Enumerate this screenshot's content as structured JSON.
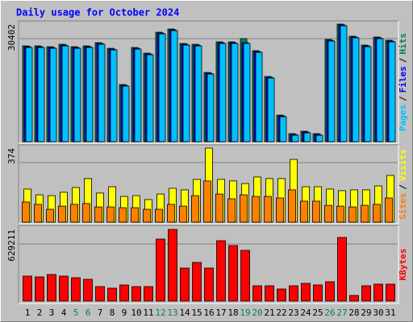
{
  "chart_data": [
    {
      "type": "bar",
      "title": "Daily usage for October 2024",
      "categories": [
        "1",
        "2",
        "3",
        "4",
        "5",
        "6",
        "7",
        "8",
        "9",
        "10",
        "11",
        "12",
        "13",
        "14",
        "15",
        "16",
        "17",
        "18",
        "19",
        "20",
        "21",
        "22",
        "23",
        "24",
        "25",
        "26",
        "27",
        "28",
        "29",
        "30",
        "31"
      ],
      "category_colors": [
        "#000000",
        "#000000",
        "#000000",
        "#000000",
        "#00805c",
        "#00805c",
        "#000000",
        "#000000",
        "#000000",
        "#000000",
        "#000000",
        "#00805c",
        "#00805c",
        "#000000",
        "#000000",
        "#000000",
        "#000000",
        "#000000",
        "#00805c",
        "#00805c",
        "#000000",
        "#000000",
        "#000000",
        "#000000",
        "#000000",
        "#00805c",
        "#00805c",
        "#000000",
        "#000000",
        "#000000",
        "#000000"
      ],
      "legend_separator": "/",
      "ylim": [
        0,
        30402
      ],
      "yticks": [
        30402
      ],
      "grid": true,
      "series": [
        {
          "name": "Pages",
          "color": "#00c0ff",
          "values": [
            24360,
            24360,
            24152,
            24776,
            24152,
            24360,
            25193,
            23735,
            14366,
            23943,
            22486,
            27899,
            28732,
            24984,
            24776,
            17489,
            25401,
            25401,
            25400,
            23111,
            16448,
            6455,
            1666,
            2291,
            1666,
            26025,
            29986,
            26858,
            24568,
            26650,
            25817
          ]
        },
        {
          "name": "Files",
          "color": "#0000ff",
          "values": [
            24568,
            24568,
            24360,
            24984,
            24360,
            24568,
            25401,
            23943,
            14574,
            24151,
            22694,
            28107,
            28940,
            25192,
            24984,
            17697,
            25609,
            25609,
            25608,
            23319,
            16656,
            6663,
            1874,
            2499,
            1874,
            26233,
            30194,
            27066,
            24776,
            26858,
            26025
          ]
        },
        {
          "name": "Hits",
          "color": "#00805c",
          "values": [
            24776,
            24776,
            24568,
            25192,
            24568,
            24776,
            25609,
            24151,
            14782,
            24359,
            22902,
            28315,
            29148,
            25400,
            25192,
            17905,
            25817,
            25817,
            26650,
            23527,
            16864,
            6871,
            2082,
            2707,
            2082,
            26441,
            30402,
            27274,
            24984,
            27066,
            26233
          ]
        }
      ]
    },
    {
      "type": "bar",
      "ylim": [
        0,
        374
      ],
      "yticks": [
        374
      ],
      "grid": true,
      "series": [
        {
          "name": "Sites",
          "color": "#ff8000",
          "values": [
            102,
            90,
            65,
            81,
            90,
            94,
            77,
            77,
            73,
            73,
            65,
            65,
            90,
            81,
            134,
            208,
            142,
            118,
            138,
            130,
            130,
            122,
            163,
            106,
            106,
            85,
            81,
            77,
            85,
            90,
            122
          ]
        },
        {
          "name": "Visits",
          "color": "#ffff00",
          "values": [
            167,
            138,
            134,
            151,
            175,
            220,
            147,
            179,
            130,
            134,
            114,
            142,
            171,
            163,
            216,
            374,
            216,
            208,
            195,
            228,
            220,
            220,
            317,
            179,
            179,
            167,
            159,
            163,
            163,
            183,
            236
          ]
        }
      ]
    },
    {
      "type": "bar",
      "ylim": [
        0,
        629211
      ],
      "yticks": [
        629211
      ],
      "grid": true,
      "series": [
        {
          "name": "KBytes",
          "color": "#ff0000",
          "values": [
            219170,
            212100,
            233310,
            219170,
            205030,
            190890,
            127260,
            113120,
            141400,
            127260,
            127260,
            544390,
            629211,
            289870,
            339360,
            289870,
            530250,
            487830,
            445410,
            134330,
            134330,
            106050,
            134330,
            155540,
            141400,
            169680,
            558530,
            49490,
            134330,
            148470,
            148470
          ]
        }
      ]
    }
  ]
}
